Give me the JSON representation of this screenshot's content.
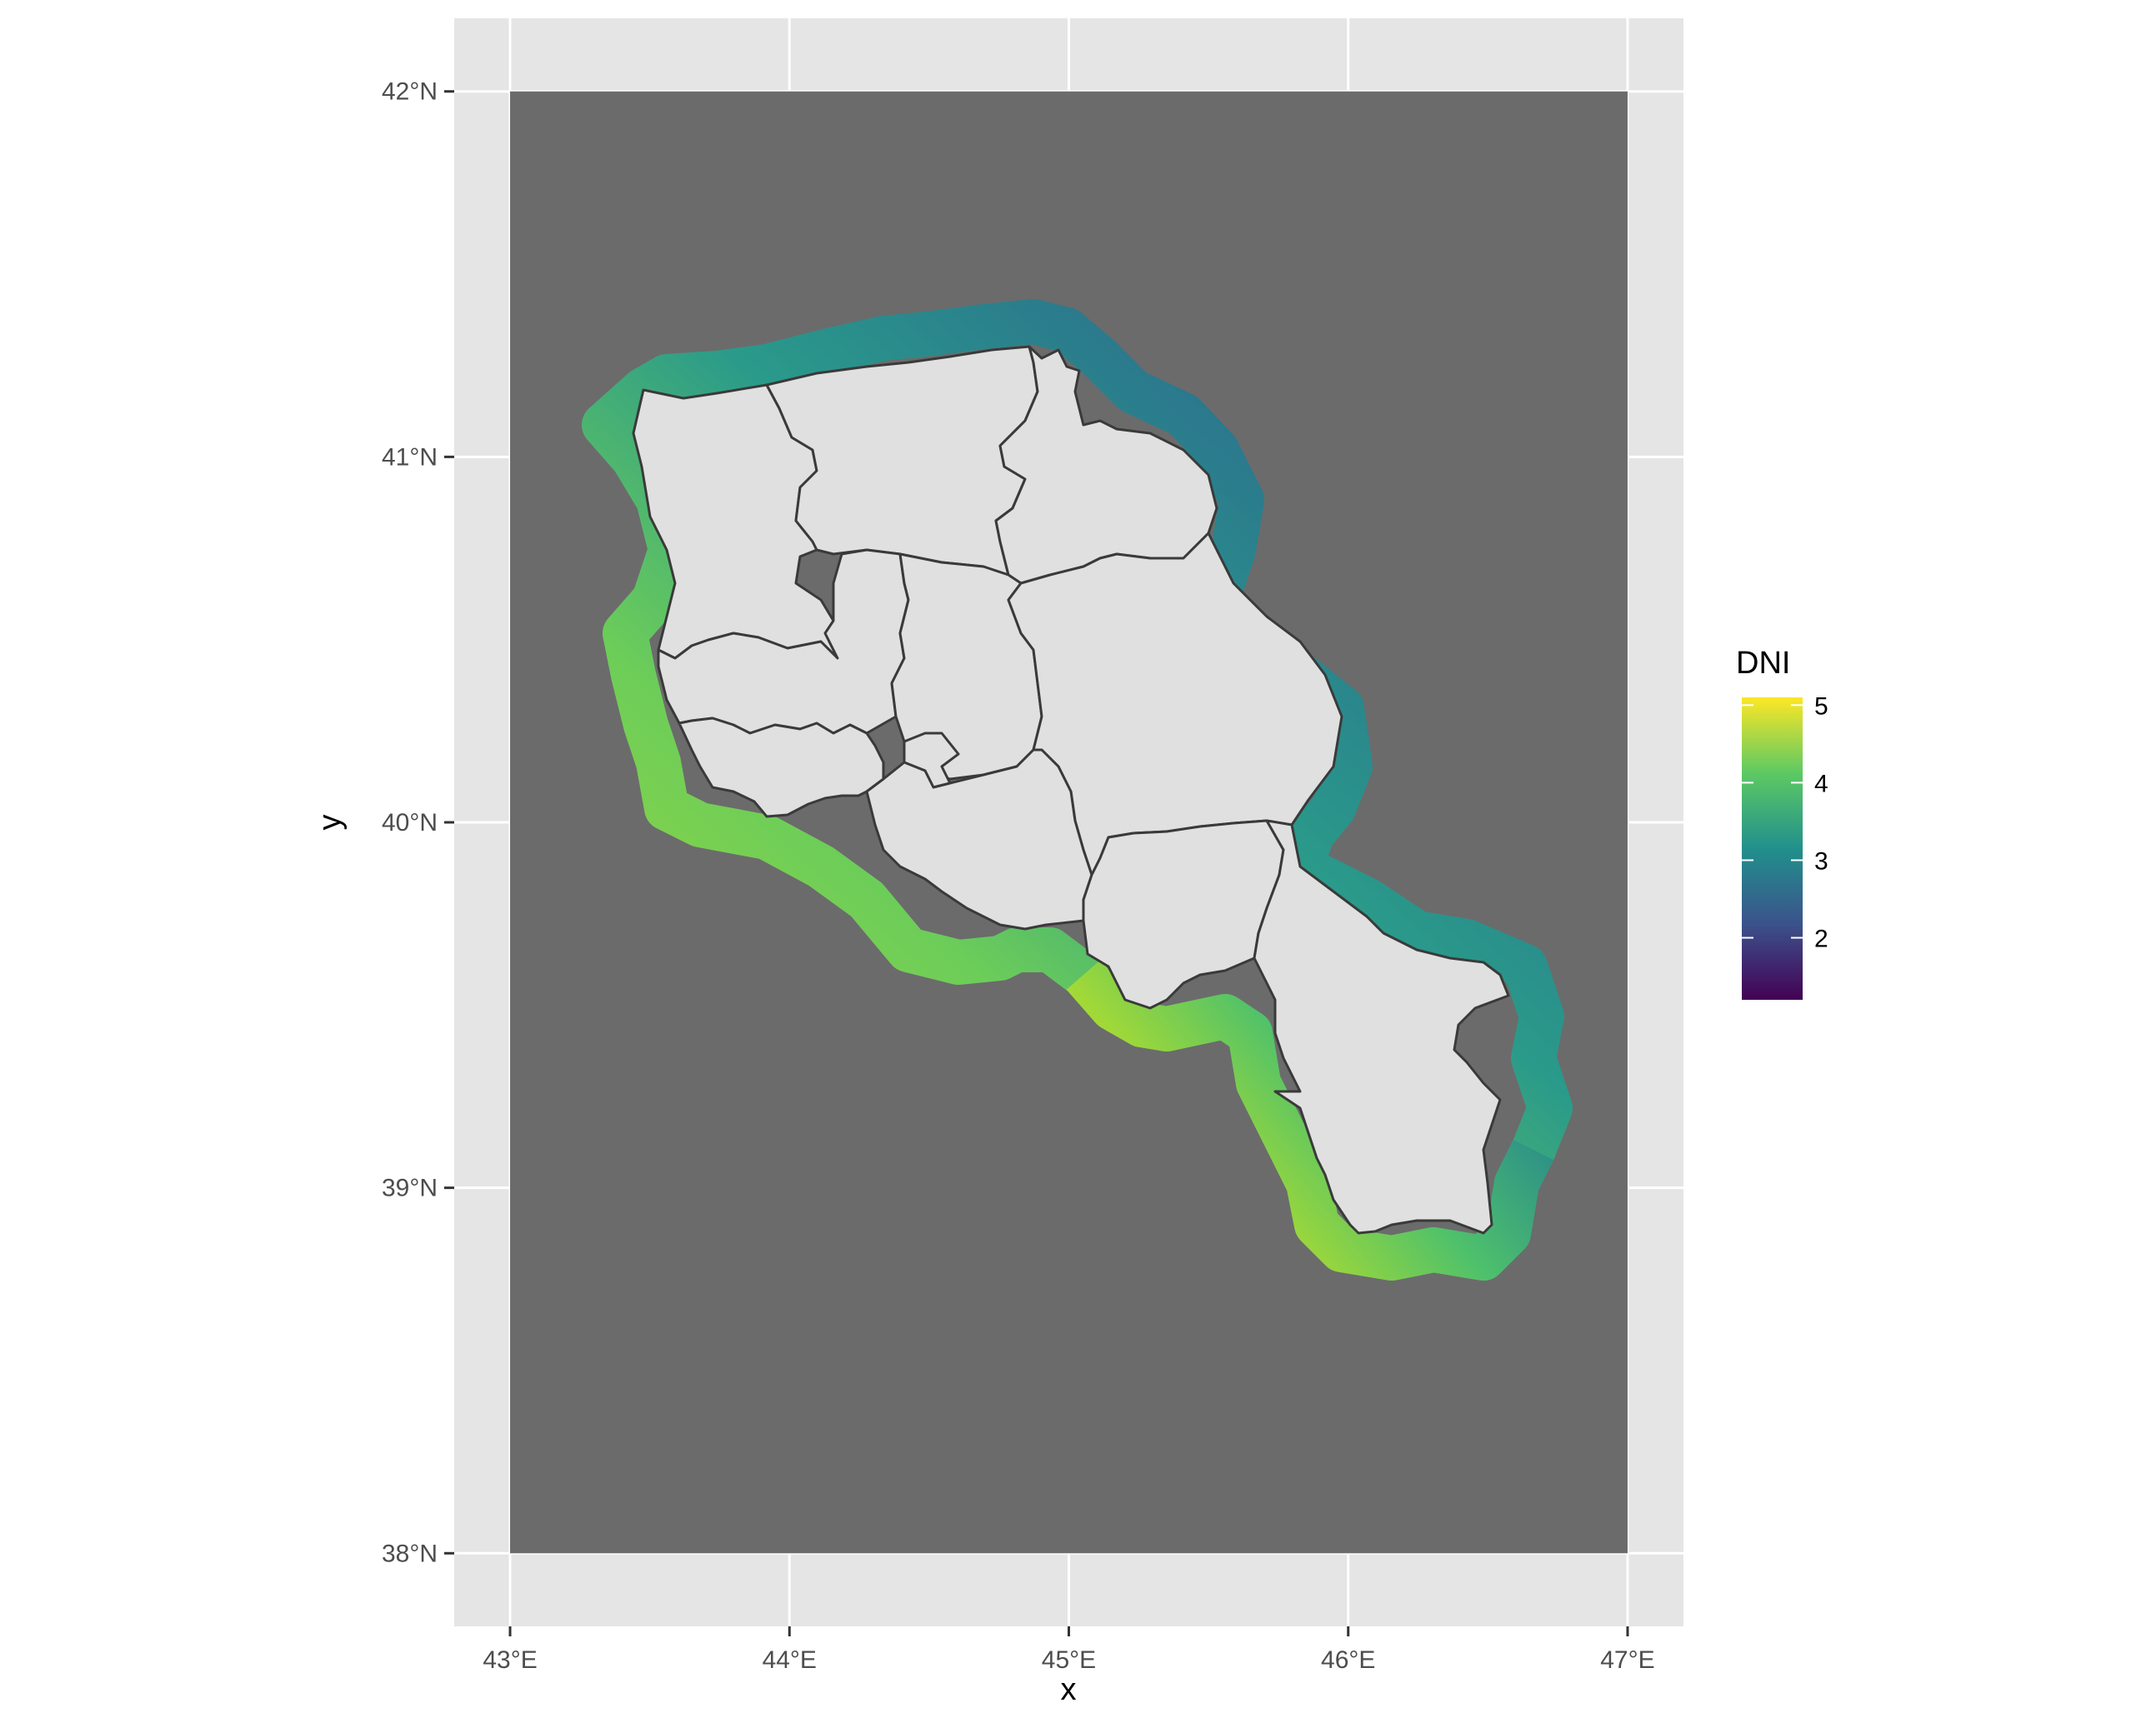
{
  "map": {
    "x_axis": {
      "title": "x",
      "range": [
        42.8,
        47.2
      ],
      "ticks": [
        {
          "value": 43,
          "label": "43°E"
        },
        {
          "value": 44,
          "label": "44°E"
        },
        {
          "value": 45,
          "label": "45°E"
        },
        {
          "value": 46,
          "label": "46°E"
        },
        {
          "value": 47,
          "label": "47°E"
        }
      ]
    },
    "y_axis": {
      "title": "y",
      "range": [
        37.8,
        42.2
      ],
      "ticks": [
        {
          "value": 38,
          "label": "38°N"
        },
        {
          "value": 39,
          "label": "39°N"
        },
        {
          "value": 40,
          "label": "40°N"
        },
        {
          "value": 41,
          "label": "41°N"
        },
        {
          "value": 42,
          "label": "42°N"
        }
      ]
    },
    "raster_extent": {
      "lon": [
        43.0,
        47.0
      ],
      "lat": [
        38.0,
        42.0
      ]
    },
    "colors": {
      "panel": "#e5e5e5",
      "grid": "#ffffff",
      "raster_nodata": "#6b6b6b",
      "region_fill": "#e0e0e0",
      "region_border": "#3a3a3a"
    },
    "legend": {
      "title": "DNI",
      "position": "right",
      "range": [
        1.2,
        5.1
      ],
      "breaks": [
        {
          "value": 2,
          "label": "2"
        },
        {
          "value": 3,
          "label": "3"
        },
        {
          "value": 4,
          "label": "4"
        },
        {
          "value": 5,
          "label": "5"
        }
      ],
      "palette": "viridis",
      "palette_stops": [
        "#440154",
        "#3b528b",
        "#21908c",
        "#5dc963",
        "#fde725"
      ]
    }
  }
}
